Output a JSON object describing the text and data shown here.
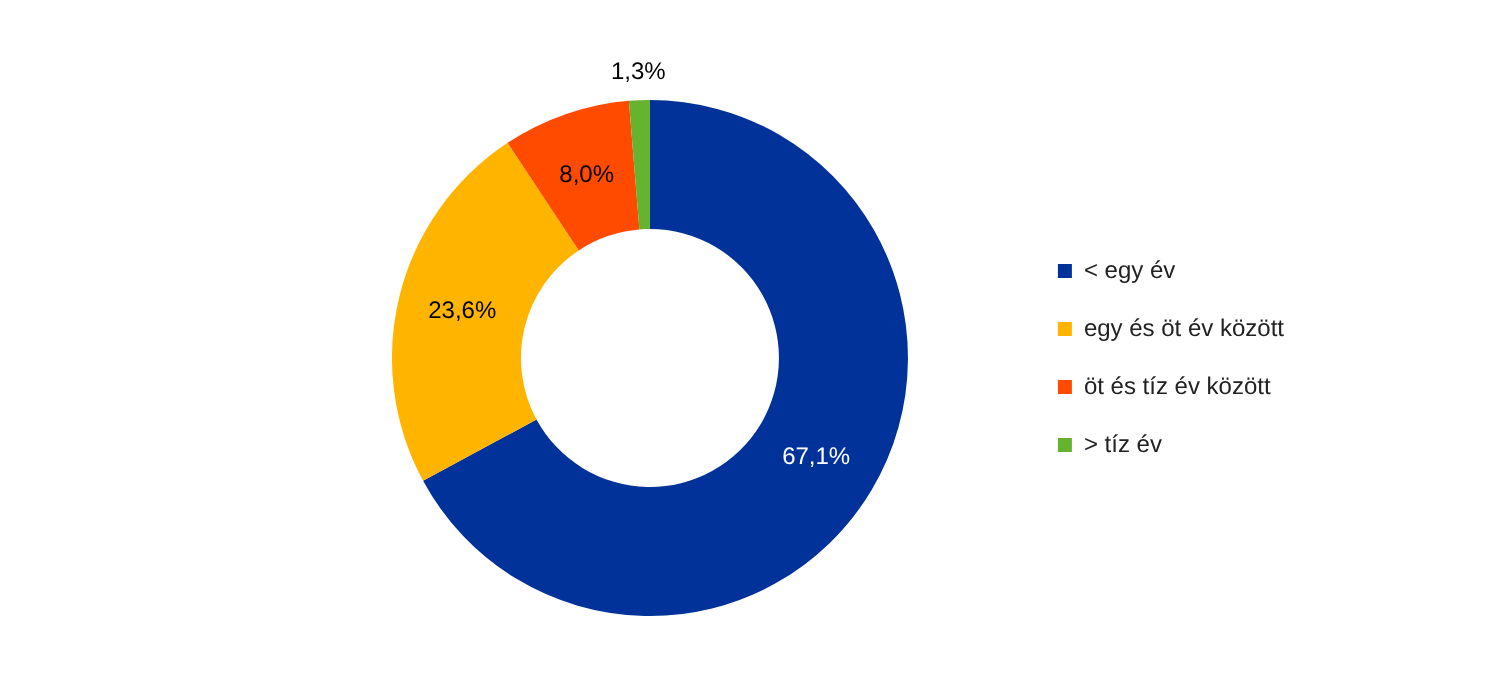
{
  "chart_data": {
    "type": "donut",
    "categories": [
      "< egy év",
      "egy és öt év között",
      "öt és tíz év között",
      "> tíz év"
    ],
    "values": [
      67.1,
      23.6,
      8.0,
      1.3
    ],
    "colors": [
      "#003299",
      "#ffb400",
      "#ff4b00",
      "#65b32e"
    ],
    "value_labels": [
      "67,1%",
      "23,6%",
      "8,0%",
      "1,3%"
    ],
    "legend": "right"
  }
}
